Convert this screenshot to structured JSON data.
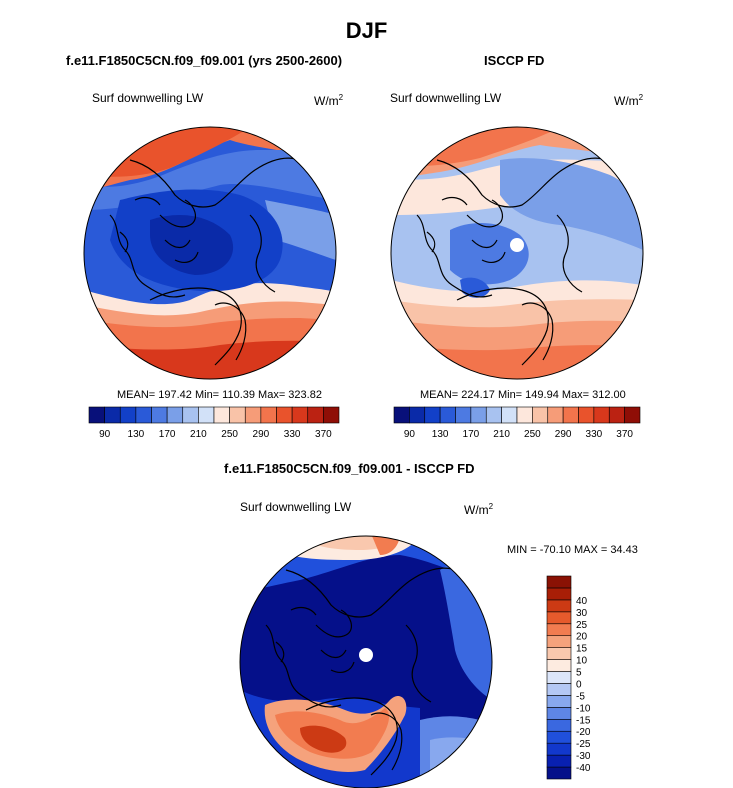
{
  "title": "DJF",
  "panels": [
    {
      "heading": "f.e11.F1850C5CN.f09_f09.001 (yrs 2500-2600)",
      "field": "Surf downwelling LW",
      "units_base": "W/m",
      "units_exp": "2",
      "stats": "MEAN= 197.42  Min= 110.39  Max= 323.82"
    },
    {
      "heading": "ISCCP FD",
      "field": "Surf downwelling LW",
      "units_base": "W/m",
      "units_exp": "2",
      "stats": "MEAN= 224.17  Min= 149.94  Max= 312.00"
    },
    {
      "heading": "f.e11.F1850C5CN.f09_f09.001 - ISCCP FD",
      "field": "Surf downwelling LW",
      "units_base": "W/m",
      "units_exp": "2",
      "stats": "MIN = -70.10 MAX =  34.43"
    }
  ],
  "chart_data": [
    {
      "type": "heatmap",
      "projection": "north-polar-stereographic",
      "title": "f.e11.F1850C5CN.f09_f09.001 (yrs 2500-2600)",
      "variable": "Surf downwelling LW",
      "units": "W/m^2",
      "mean": 197.42,
      "min": 110.39,
      "max": 323.82,
      "colorbar_levels": [
        90,
        100,
        110,
        120,
        130,
        140,
        150,
        160,
        170,
        180,
        190,
        200,
        210,
        220,
        230,
        240,
        250,
        260,
        270,
        280,
        290,
        300,
        310,
        320,
        330,
        340,
        350,
        360,
        370
      ],
      "colorbar_tick_labels": [
        "90",
        "130",
        "170",
        "210",
        "250",
        "290",
        "330",
        "370"
      ],
      "colorbar_colors": [
        "#08107a",
        "#0a2aa8",
        "#1240c8",
        "#2a5ad8",
        "#4d7ae2",
        "#7a9fe8",
        "#a8c2f0",
        "#d2e1f8",
        "#fde7dc",
        "#f9c3a8",
        "#f69c78",
        "#f2744c",
        "#e9532c",
        "#d8381c",
        "#bb2212",
        "#8f0e06"
      ]
    },
    {
      "type": "heatmap",
      "projection": "north-polar-stereographic",
      "title": "ISCCP FD",
      "variable": "Surf downwelling LW",
      "units": "W/m^2",
      "mean": 224.17,
      "min": 149.94,
      "max": 312.0,
      "colorbar_levels": [
        90,
        100,
        110,
        120,
        130,
        140,
        150,
        160,
        170,
        180,
        190,
        200,
        210,
        220,
        230,
        240,
        250,
        260,
        270,
        280,
        290,
        300,
        310,
        320,
        330,
        340,
        350,
        360,
        370
      ],
      "colorbar_tick_labels": [
        "90",
        "130",
        "170",
        "210",
        "250",
        "290",
        "330",
        "370"
      ],
      "colorbar_colors": [
        "#08107a",
        "#0a2aa8",
        "#1240c8",
        "#2a5ad8",
        "#4d7ae2",
        "#7a9fe8",
        "#a8c2f0",
        "#d2e1f8",
        "#fde7dc",
        "#f9c3a8",
        "#f69c78",
        "#f2744c",
        "#e9532c",
        "#d8381c",
        "#bb2212",
        "#8f0e06"
      ]
    },
    {
      "type": "heatmap",
      "projection": "north-polar-stereographic",
      "title": "f.e11.F1850C5CN.f09_f09.001 - ISCCP FD",
      "variable": "Surf downwelling LW",
      "units": "W/m^2",
      "min": -70.1,
      "max": 34.43,
      "colorbar_levels": [
        -40,
        -35,
        -30,
        -25,
        -20,
        -15,
        -10,
        -5,
        0,
        5,
        10,
        15,
        20,
        25,
        30,
        40
      ],
      "colorbar_tick_labels": [
        "-40",
        "-30",
        "-25",
        "-20",
        "-15",
        "-10",
        "-5",
        "0",
        "5",
        "10",
        "15",
        "20",
        "25",
        "30",
        "40"
      ],
      "colorbar_colors": [
        "#05108a",
        "#0820b0",
        "#1238cc",
        "#2050dc",
        "#3a68e0",
        "#5e86e6",
        "#88a8ee",
        "#b4c8f4",
        "#dce6fa",
        "#fdebe0",
        "#f9c8ae",
        "#f5a27c",
        "#f27c50",
        "#e65a2c",
        "#cc3a14",
        "#a81e06",
        "#8a1204"
      ]
    }
  ]
}
